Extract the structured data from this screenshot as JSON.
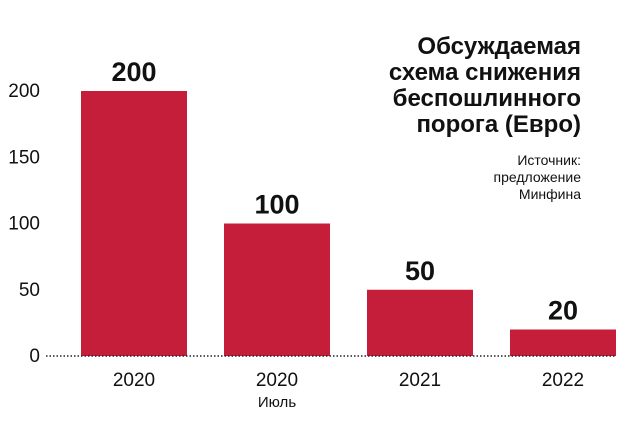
{
  "title_lines": [
    "Обсуждаемая",
    "схема снижения",
    "беспошлинного",
    "порога (Евро)"
  ],
  "source_lines": [
    "Источник:",
    "предложение",
    "Минфина"
  ],
  "colors": {
    "bar": "#c41e3a",
    "text": "#111111",
    "axis": "#222222"
  },
  "chart_data": {
    "type": "bar",
    "title": "Обсуждаемая схема снижения беспошлинного порога (Евро)",
    "categories": [
      "2020",
      "2020",
      "2021",
      "2022"
    ],
    "sublabels": [
      "",
      "Июль",
      "",
      ""
    ],
    "values": [
      200,
      100,
      50,
      20
    ],
    "data_labels": [
      "200",
      "100",
      "50",
      "20"
    ],
    "yticks": [
      0,
      50,
      100,
      150,
      200
    ],
    "ylim": [
      0,
      200
    ],
    "xlabel": "",
    "ylabel": "",
    "grid": false,
    "legend": "none"
  }
}
